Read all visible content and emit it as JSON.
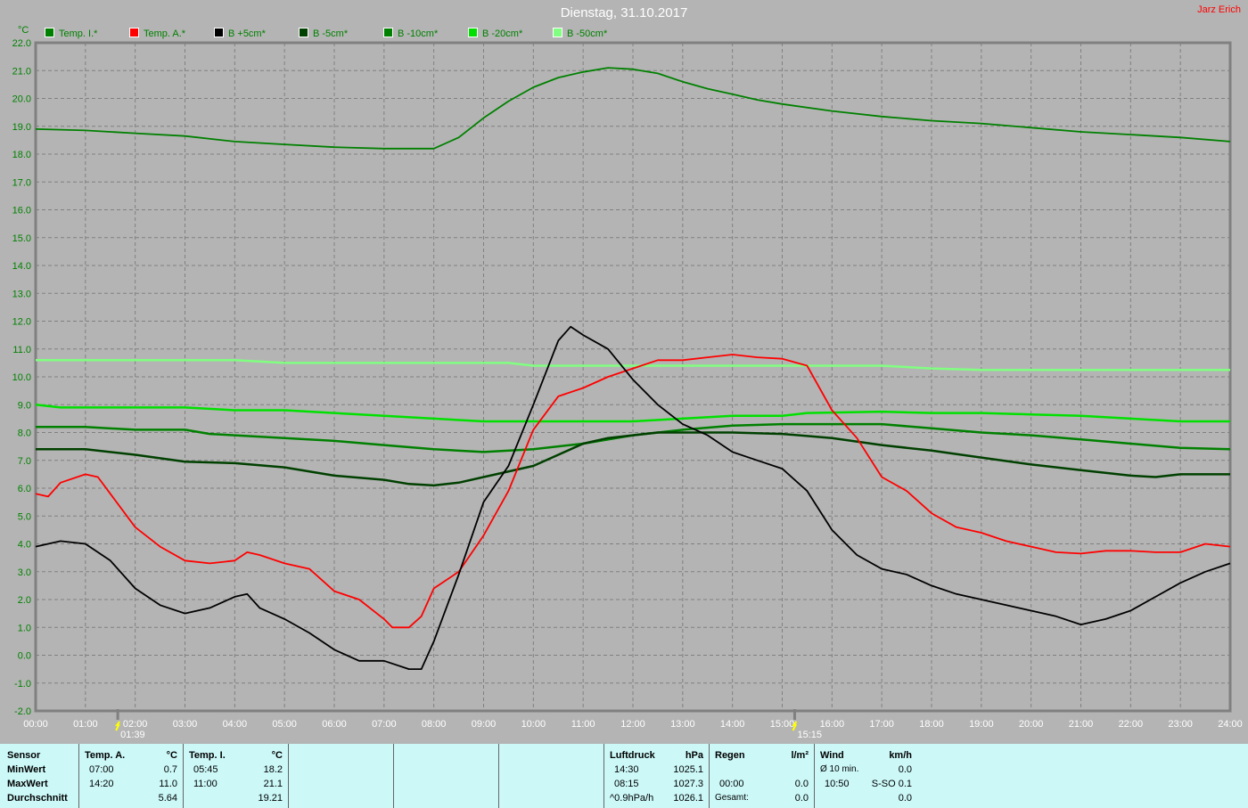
{
  "title": "Dienstag, 31.10.2017",
  "author": "Jarz Erich",
  "chart_data": {
    "type": "line",
    "ylabel": "°C",
    "ylim": [
      -2,
      22
    ],
    "xlim": [
      "00:00",
      "24:00"
    ],
    "grid": true,
    "legend_placement": "top-left",
    "yticks": [
      "22.0",
      "21.0",
      "20.0",
      "19.0",
      "18.0",
      "17.0",
      "16.0",
      "15.0",
      "14.0",
      "13.0",
      "12.0",
      "11.0",
      "10.0",
      "9.0",
      "8.0",
      "7.0",
      "6.0",
      "5.0",
      "4.0",
      "3.0",
      "2.0",
      "1.0",
      "0.0",
      "-1.0",
      "-2.0"
    ],
    "xticks": [
      "00:00",
      "01:00",
      "02:00",
      "03:00",
      "04:00",
      "05:00",
      "06:00",
      "07:00",
      "08:00",
      "09:00",
      "10:00",
      "11:00",
      "12:00",
      "13:00",
      "14:00",
      "15:00",
      "16:00",
      "17:00",
      "18:00",
      "19:00",
      "20:00",
      "21:00",
      "22:00",
      "23:00",
      "24:00"
    ],
    "markers": [
      {
        "icon": "sunrise-icon",
        "label": "01:39"
      },
      {
        "icon": "sunset-icon",
        "label": "15:15"
      }
    ],
    "series": [
      {
        "name": "Temp. I.*",
        "color": "#008000",
        "points": [
          [
            "00:00",
            18.9
          ],
          [
            "01:00",
            18.85
          ],
          [
            "02:00",
            18.75
          ],
          [
            "03:00",
            18.65
          ],
          [
            "04:00",
            18.45
          ],
          [
            "05:00",
            18.35
          ],
          [
            "06:00",
            18.25
          ],
          [
            "07:00",
            18.2
          ],
          [
            "08:00",
            18.2
          ],
          [
            "08:30",
            18.6
          ],
          [
            "09:00",
            19.3
          ],
          [
            "09:30",
            19.9
          ],
          [
            "10:00",
            20.4
          ],
          [
            "10:30",
            20.75
          ],
          [
            "11:00",
            20.95
          ],
          [
            "11:30",
            21.1
          ],
          [
            "12:00",
            21.05
          ],
          [
            "12:30",
            20.9
          ],
          [
            "13:00",
            20.6
          ],
          [
            "13:30",
            20.35
          ],
          [
            "14:00",
            20.15
          ],
          [
            "14:30",
            19.95
          ],
          [
            "15:00",
            19.8
          ],
          [
            "16:00",
            19.55
          ],
          [
            "17:00",
            19.35
          ],
          [
            "18:00",
            19.2
          ],
          [
            "19:00",
            19.1
          ],
          [
            "20:00",
            18.95
          ],
          [
            "21:00",
            18.8
          ],
          [
            "22:00",
            18.7
          ],
          [
            "23:00",
            18.6
          ],
          [
            "24:00",
            18.45
          ]
        ]
      },
      {
        "name": "Temp. A.*",
        "color": "#ff0000",
        "points": [
          [
            "00:00",
            5.8
          ],
          [
            "00:15",
            5.7
          ],
          [
            "00:30",
            6.2
          ],
          [
            "01:00",
            6.5
          ],
          [
            "01:15",
            6.4
          ],
          [
            "01:30",
            5.8
          ],
          [
            "02:00",
            4.6
          ],
          [
            "02:30",
            3.9
          ],
          [
            "03:00",
            3.4
          ],
          [
            "03:30",
            3.3
          ],
          [
            "04:00",
            3.4
          ],
          [
            "04:15",
            3.7
          ],
          [
            "04:30",
            3.6
          ],
          [
            "05:00",
            3.3
          ],
          [
            "05:30",
            3.1
          ],
          [
            "06:00",
            2.3
          ],
          [
            "06:30",
            2.0
          ],
          [
            "07:00",
            1.3
          ],
          [
            "07:10",
            1.0
          ],
          [
            "07:30",
            1.0
          ],
          [
            "07:45",
            1.4
          ],
          [
            "08:00",
            2.4
          ],
          [
            "08:30",
            3.0
          ],
          [
            "09:00",
            4.3
          ],
          [
            "09:30",
            5.9
          ],
          [
            "10:00",
            8.1
          ],
          [
            "10:30",
            9.3
          ],
          [
            "11:00",
            9.6
          ],
          [
            "11:30",
            10.0
          ],
          [
            "12:00",
            10.3
          ],
          [
            "12:30",
            10.6
          ],
          [
            "13:00",
            10.6
          ],
          [
            "13:30",
            10.7
          ],
          [
            "14:00",
            10.8
          ],
          [
            "14:30",
            10.7
          ],
          [
            "15:00",
            10.65
          ],
          [
            "15:30",
            10.4
          ],
          [
            "16:00",
            8.8
          ],
          [
            "16:30",
            7.8
          ],
          [
            "17:00",
            6.4
          ],
          [
            "17:30",
            5.9
          ],
          [
            "18:00",
            5.1
          ],
          [
            "18:30",
            4.6
          ],
          [
            "19:00",
            4.4
          ],
          [
            "19:30",
            4.1
          ],
          [
            "20:00",
            3.9
          ],
          [
            "20:30",
            3.7
          ],
          [
            "21:00",
            3.65
          ],
          [
            "21:30",
            3.75
          ],
          [
            "22:00",
            3.75
          ],
          [
            "22:30",
            3.7
          ],
          [
            "23:00",
            3.7
          ],
          [
            "23:30",
            4.0
          ],
          [
            "24:00",
            3.9
          ]
        ]
      },
      {
        "name": "B +5cm*",
        "color": "#000000",
        "points": [
          [
            "00:00",
            3.9
          ],
          [
            "00:30",
            4.1
          ],
          [
            "01:00",
            4.0
          ],
          [
            "01:30",
            3.4
          ],
          [
            "02:00",
            2.4
          ],
          [
            "02:30",
            1.8
          ],
          [
            "03:00",
            1.5
          ],
          [
            "03:30",
            1.7
          ],
          [
            "04:00",
            2.1
          ],
          [
            "04:15",
            2.2
          ],
          [
            "04:30",
            1.7
          ],
          [
            "05:00",
            1.3
          ],
          [
            "05:30",
            0.8
          ],
          [
            "06:00",
            0.2
          ],
          [
            "06:30",
            -0.2
          ],
          [
            "07:00",
            -0.2
          ],
          [
            "07:30",
            -0.5
          ],
          [
            "07:45",
            -0.5
          ],
          [
            "08:00",
            0.5
          ],
          [
            "08:30",
            2.9
          ],
          [
            "09:00",
            5.5
          ],
          [
            "09:30",
            6.8
          ],
          [
            "10:00",
            9.0
          ],
          [
            "10:30",
            11.3
          ],
          [
            "10:45",
            11.8
          ],
          [
            "11:00",
            11.5
          ],
          [
            "11:30",
            11.0
          ],
          [
            "12:00",
            9.9
          ],
          [
            "12:30",
            9.0
          ],
          [
            "13:00",
            8.3
          ],
          [
            "13:30",
            7.9
          ],
          [
            "14:00",
            7.3
          ],
          [
            "14:30",
            7.0
          ],
          [
            "15:00",
            6.7
          ],
          [
            "15:30",
            5.9
          ],
          [
            "16:00",
            4.5
          ],
          [
            "16:30",
            3.6
          ],
          [
            "17:00",
            3.1
          ],
          [
            "17:30",
            2.9
          ],
          [
            "18:00",
            2.5
          ],
          [
            "18:30",
            2.2
          ],
          [
            "19:00",
            2.0
          ],
          [
            "19:30",
            1.8
          ],
          [
            "20:00",
            1.6
          ],
          [
            "20:30",
            1.4
          ],
          [
            "21:00",
            1.1
          ],
          [
            "21:30",
            1.3
          ],
          [
            "22:00",
            1.6
          ],
          [
            "22:30",
            2.1
          ],
          [
            "23:00",
            2.6
          ],
          [
            "23:30",
            3.0
          ],
          [
            "24:00",
            3.3
          ]
        ]
      },
      {
        "name": "B -5cm*",
        "color": "#004000",
        "points": [
          [
            "00:00",
            7.4
          ],
          [
            "01:00",
            7.4
          ],
          [
            "02:00",
            7.2
          ],
          [
            "03:00",
            6.95
          ],
          [
            "04:00",
            6.9
          ],
          [
            "05:00",
            6.75
          ],
          [
            "06:00",
            6.45
          ],
          [
            "07:00",
            6.3
          ],
          [
            "07:30",
            6.15
          ],
          [
            "08:00",
            6.1
          ],
          [
            "08:30",
            6.2
          ],
          [
            "09:00",
            6.4
          ],
          [
            "10:00",
            6.8
          ],
          [
            "10:30",
            7.2
          ],
          [
            "11:00",
            7.6
          ],
          [
            "11:30",
            7.8
          ],
          [
            "12:00",
            7.9
          ],
          [
            "12:30",
            8.0
          ],
          [
            "14:00",
            8.0
          ],
          [
            "15:00",
            7.95
          ],
          [
            "16:00",
            7.8
          ],
          [
            "17:00",
            7.55
          ],
          [
            "18:00",
            7.35
          ],
          [
            "19:00",
            7.1
          ],
          [
            "20:00",
            6.85
          ],
          [
            "21:00",
            6.65
          ],
          [
            "22:00",
            6.45
          ],
          [
            "22:30",
            6.4
          ],
          [
            "23:00",
            6.5
          ],
          [
            "24:00",
            6.5
          ]
        ]
      },
      {
        "name": "B -10cm*",
        "color": "#008000",
        "points": [
          [
            "00:00",
            8.2
          ],
          [
            "01:00",
            8.2
          ],
          [
            "02:00",
            8.1
          ],
          [
            "03:00",
            8.1
          ],
          [
            "03:30",
            7.95
          ],
          [
            "04:00",
            7.9
          ],
          [
            "05:00",
            7.8
          ],
          [
            "06:00",
            7.7
          ],
          [
            "07:00",
            7.55
          ],
          [
            "08:00",
            7.4
          ],
          [
            "09:00",
            7.3
          ],
          [
            "10:00",
            7.4
          ],
          [
            "11:00",
            7.6
          ],
          [
            "12:00",
            7.9
          ],
          [
            "13:00",
            8.1
          ],
          [
            "14:00",
            8.25
          ],
          [
            "15:00",
            8.3
          ],
          [
            "17:00",
            8.3
          ],
          [
            "18:00",
            8.15
          ],
          [
            "19:00",
            8.0
          ],
          [
            "20:00",
            7.9
          ],
          [
            "21:00",
            7.75
          ],
          [
            "22:00",
            7.6
          ],
          [
            "23:00",
            7.45
          ],
          [
            "24:00",
            7.4
          ]
        ]
      },
      {
        "name": "B -20cm*",
        "color": "#00e000",
        "points": [
          [
            "00:00",
            9.0
          ],
          [
            "00:30",
            8.9
          ],
          [
            "03:00",
            8.9
          ],
          [
            "04:00",
            8.8
          ],
          [
            "05:00",
            8.8
          ],
          [
            "06:00",
            8.7
          ],
          [
            "07:00",
            8.6
          ],
          [
            "08:00",
            8.5
          ],
          [
            "09:00",
            8.4
          ],
          [
            "12:00",
            8.4
          ],
          [
            "13:00",
            8.5
          ],
          [
            "14:00",
            8.6
          ],
          [
            "15:00",
            8.6
          ],
          [
            "15:30",
            8.7
          ],
          [
            "17:00",
            8.75
          ],
          [
            "18:00",
            8.7
          ],
          [
            "19:00",
            8.7
          ],
          [
            "20:00",
            8.65
          ],
          [
            "21:00",
            8.6
          ],
          [
            "22:00",
            8.5
          ],
          [
            "23:00",
            8.4
          ],
          [
            "24:00",
            8.4
          ]
        ]
      },
      {
        "name": "B -50cm*",
        "color": "#80ff80",
        "points": [
          [
            "00:00",
            10.6
          ],
          [
            "04:00",
            10.6
          ],
          [
            "05:00",
            10.5
          ],
          [
            "09:30",
            10.5
          ],
          [
            "10:00",
            10.4
          ],
          [
            "17:00",
            10.4
          ],
          [
            "18:00",
            10.3
          ],
          [
            "19:00",
            10.25
          ],
          [
            "24:00",
            10.25
          ]
        ]
      }
    ]
  },
  "table": {
    "sensor": {
      "header": "Sensor",
      "rows": [
        "MinWert",
        "MaxWert",
        "Durchschnitt"
      ]
    },
    "temp_a": {
      "header": "Temp. A.",
      "unit": "°C",
      "min_time": "07:00",
      "min": "0.7",
      "max_time": "14:20",
      "max": "11.0",
      "avg": "5.64"
    },
    "temp_i": {
      "header": "Temp. I.",
      "unit": "°C",
      "min_time": "05:45",
      "min": "18.2",
      "max_time": "11:00",
      "max": "21.1",
      "avg": "19.21"
    },
    "luftdruck": {
      "header": "Luftdruck",
      "unit": "hPa",
      "min_time": "14:30",
      "min": "1025.1",
      "max_time": "08:15",
      "max": "1027.3",
      "trend": "^0.9hPa/h",
      "avg": "1026.1"
    },
    "regen": {
      "header": "Regen",
      "unit": "l/m²",
      "time": "00:00",
      "value": "0.0",
      "total_label": "Gesamt:",
      "total": "0.0"
    },
    "wind": {
      "header": "Wind",
      "unit": "km/h",
      "avg_label": "Ø 10 min.",
      "avg": "0.0",
      "max_time": "10:50",
      "max": "S-SO 0.1",
      "last": "0.0"
    }
  }
}
